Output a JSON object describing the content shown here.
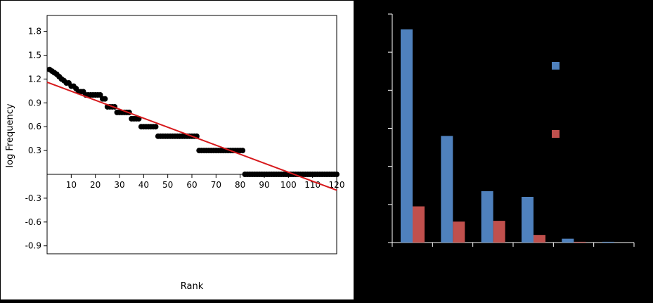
{
  "chart_data": [
    {
      "type": "scatter",
      "title": "",
      "xlabel": "Rank",
      "ylabel": "log Frequency",
      "xlim": [
        0,
        120
      ],
      "ylim": [
        -1.0,
        2.0
      ],
      "x_ticks": [
        10,
        20,
        30,
        40,
        50,
        60,
        70,
        80,
        90,
        100,
        110,
        120
      ],
      "x_tick_labels": [
        "10",
        "20",
        "30",
        "40",
        "50",
        "60",
        "70",
        "80",
        "90",
        "100",
        "110",
        "120"
      ],
      "y_ticks": [
        1.8,
        1.5,
        1.2,
        0.9,
        0.6,
        0.3,
        -0.3,
        -0.6,
        -0.9
      ],
      "y_tick_labels": [
        "1.8",
        "1.5",
        "1.2",
        "0.9",
        "0.6",
        "0.3",
        "-0.3",
        "-0.6",
        "-0.9"
      ],
      "series": [
        {
          "x": [
            1,
            2,
            3,
            4,
            5,
            6,
            7,
            8,
            9,
            10,
            11,
            12,
            13,
            14,
            15,
            16,
            17,
            18,
            19,
            20,
            21,
            22,
            23,
            24,
            25,
            26,
            27,
            28,
            29,
            30,
            31,
            32,
            33,
            34,
            35,
            36,
            37,
            38,
            39,
            40,
            41,
            42,
            43,
            44,
            45,
            46,
            47,
            48,
            49,
            50,
            51,
            52,
            53,
            54,
            55,
            56,
            57,
            58,
            59,
            60,
            61,
            62,
            63,
            64,
            65,
            66,
            67,
            68,
            69,
            70,
            71,
            72,
            73,
            74,
            75,
            76,
            77,
            78,
            79,
            80,
            81,
            82,
            83,
            84,
            85,
            86,
            87,
            88,
            89,
            90,
            91,
            92,
            93,
            94,
            95,
            96,
            97,
            98,
            99,
            100,
            101,
            102,
            103,
            104,
            105,
            106,
            107,
            108,
            109,
            110,
            111,
            112,
            113,
            114,
            115,
            116,
            117,
            118,
            119,
            120
          ],
          "y": [
            1.32,
            1.3,
            1.28,
            1.26,
            1.23,
            1.2,
            1.18,
            1.15,
            1.15,
            1.11,
            1.11,
            1.08,
            1.04,
            1.04,
            1.04,
            1.0,
            1.0,
            1.0,
            1.0,
            1.0,
            1.0,
            1.0,
            0.95,
            0.95,
            0.85,
            0.85,
            0.85,
            0.85,
            0.78,
            0.78,
            0.78,
            0.78,
            0.78,
            0.78,
            0.7,
            0.7,
            0.7,
            0.7,
            0.6,
            0.6,
            0.6,
            0.6,
            0.6,
            0.6,
            0.6,
            0.48,
            0.48,
            0.48,
            0.48,
            0.48,
            0.48,
            0.48,
            0.48,
            0.48,
            0.48,
            0.48,
            0.48,
            0.48,
            0.48,
            0.48,
            0.48,
            0.48,
            0.3,
            0.3,
            0.3,
            0.3,
            0.3,
            0.3,
            0.3,
            0.3,
            0.3,
            0.3,
            0.3,
            0.3,
            0.3,
            0.3,
            0.3,
            0.3,
            0.3,
            0.3,
            0.3,
            0.0,
            0.0,
            0.0,
            0.0,
            0.0,
            0.0,
            0.0,
            0.0,
            0.0,
            0.0,
            0.0,
            0.0,
            0.0,
            0.0,
            0.0,
            0.0,
            0.0,
            0.0,
            0.0,
            0.0,
            0.0,
            0.0,
            0.0,
            0.0,
            0.0,
            0.0,
            0.0,
            0.0,
            0.0,
            0.0,
            0.0,
            0.0,
            0.0,
            0.0,
            0.0,
            0.0,
            0.0,
            0.0,
            0.0
          ],
          "color": "#000000"
        }
      ],
      "fit_line": {
        "x": [
          0,
          120
        ],
        "y": [
          1.16,
          -0.2
        ],
        "color": "#d7191c"
      },
      "grid": false,
      "legend": "none"
    },
    {
      "type": "bar",
      "title": "",
      "xlabel": "",
      "ylabel": "",
      "categories": [
        "",
        "",
        "",
        "",
        "",
        ""
      ],
      "ylim": [
        0,
        6
      ],
      "y_tick_count": 6,
      "background": "#000000",
      "axis_color": "#ffffff",
      "series": [
        {
          "name": "",
          "values": [
            5.6,
            2.8,
            1.35,
            1.2,
            0.1,
            0.02
          ],
          "color": "#4f81bd"
        },
        {
          "name": "",
          "values": [
            0.95,
            0.55,
            0.57,
            0.2,
            0.02,
            0.0
          ],
          "color": "#c0504d"
        }
      ],
      "grid": false,
      "legend": "right"
    }
  ]
}
